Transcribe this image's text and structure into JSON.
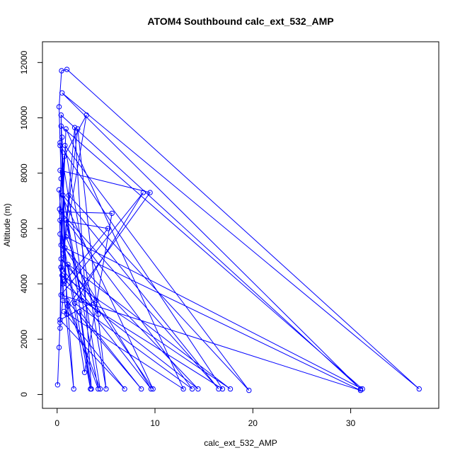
{
  "chart_data": {
    "type": "line",
    "title": "ATOM4 Southbound calc_ext_532_AMP",
    "xlabel": "calc_ext_532_AMP",
    "ylabel": "Altitude (m)",
    "xlim": [
      -1.5,
      39
    ],
    "ylim": [
      -500,
      12750
    ],
    "x_ticks": [
      0,
      10,
      20,
      30
    ],
    "y_ticks": [
      0,
      2000,
      4000,
      6000,
      8000,
      10000,
      12000
    ],
    "grid": false,
    "legend": "none",
    "series": [
      {
        "color": "#0000ff",
        "marker": "open-circle",
        "points": [
          [
            0.05,
            350
          ],
          [
            0.2,
            1700
          ],
          [
            0.3,
            2600
          ],
          [
            0.6,
            3400
          ],
          [
            0.4,
            4600
          ],
          [
            0.3,
            5800
          ],
          [
            0.25,
            6700
          ],
          [
            0.4,
            7800
          ],
          [
            0.3,
            9100
          ],
          [
            0.2,
            10400
          ],
          [
            0.45,
            11700
          ],
          [
            1.0,
            11750
          ],
          [
            37.0,
            200
          ],
          [
            0.5,
            10900
          ],
          [
            31.0,
            200
          ],
          [
            0.4,
            10100
          ],
          [
            1.0,
            2900
          ],
          [
            0.5,
            9300
          ],
          [
            0.3,
            2400
          ],
          [
            0.7,
            8600
          ],
          [
            3.0,
            10100
          ],
          [
            0.6,
            5100
          ],
          [
            2.1,
            9600
          ],
          [
            5.0,
            200
          ],
          [
            0.8,
            9000
          ],
          [
            19.6,
            150
          ],
          [
            1.2,
            7200
          ],
          [
            0.5,
            4500
          ],
          [
            1.8,
            9650
          ],
          [
            3.5,
            200
          ],
          [
            0.3,
            8100
          ],
          [
            9.5,
            7300
          ],
          [
            1.1,
            3200
          ],
          [
            4.2,
            200
          ],
          [
            0.6,
            7200
          ],
          [
            16.5,
            200
          ],
          [
            0.4,
            6600
          ],
          [
            5.6,
            6550
          ],
          [
            2.8,
            800
          ],
          [
            0.3,
            6300
          ],
          [
            5.2,
            6000
          ],
          [
            0.6,
            4000
          ],
          [
            14.4,
            200
          ],
          [
            0.4,
            5400
          ],
          [
            0.9,
            9600
          ],
          [
            12.9,
            200
          ],
          [
            0.7,
            3000
          ],
          [
            6.9,
            200
          ],
          [
            0.3,
            2700
          ],
          [
            4.0,
            3400
          ],
          [
            0.4,
            4900
          ],
          [
            17.7,
            200
          ],
          [
            0.5,
            4300
          ],
          [
            9.6,
            200
          ],
          [
            0.8,
            5300
          ],
          [
            31.0,
            150
          ],
          [
            0.4,
            3600
          ],
          [
            8.8,
            7300
          ],
          [
            1.8,
            3300
          ],
          [
            13.8,
            200
          ],
          [
            0.9,
            6300
          ],
          [
            2.5,
            3400
          ],
          [
            16.9,
            200
          ],
          [
            0.3,
            9000
          ],
          [
            4.4,
            200
          ],
          [
            1.0,
            3400
          ],
          [
            8.6,
            200
          ],
          [
            2.3,
            3000
          ],
          [
            3.4,
            200
          ],
          [
            1.1,
            4700
          ],
          [
            9.8,
            200
          ],
          [
            0.2,
            7400
          ],
          [
            1.7,
            200
          ],
          [
            0.4,
            4600
          ],
          [
            4.2,
            2900
          ],
          [
            0.9,
            5700
          ],
          [
            31.2,
            200
          ],
          [
            0.4,
            9700
          ],
          [
            0.8,
            4100
          ]
        ]
      }
    ]
  }
}
